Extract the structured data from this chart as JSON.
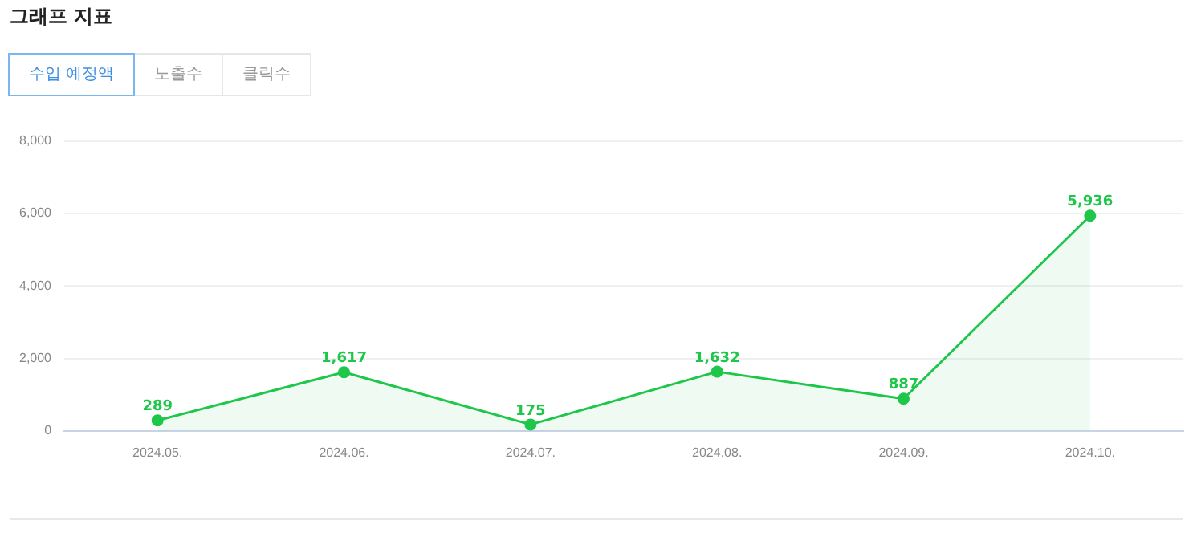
{
  "chart_data": {
    "type": "area",
    "title": "그래프 지표",
    "annotations": [
      "수입 예정액",
      "노출수",
      "클릭수"
    ],
    "categories": [
      "2024.05.",
      "2024.06.",
      "2024.07.",
      "2024.08.",
      "2024.09.",
      "2024.10."
    ],
    "series": [
      {
        "color": "#1ec64a",
        "values": [
          289,
          1617,
          175,
          1632,
          887,
          5936
        ],
        "value_labels": [
          "289",
          "1,617",
          "175",
          "1,632",
          "887",
          "5,936"
        ]
      }
    ],
    "ylim": [
      0,
      8000
    ],
    "yticks": [
      0,
      {
        "value": 2000,
        "label": "2,000"
      },
      {
        "value": 4000,
        "label": "4,000"
      },
      {
        "value": 6000,
        "label": "6,000"
      },
      {
        "value": 8000,
        "label": "8,000"
      }
    ],
    "grid": "y",
    "marker": "circle",
    "legend": false
  }
}
